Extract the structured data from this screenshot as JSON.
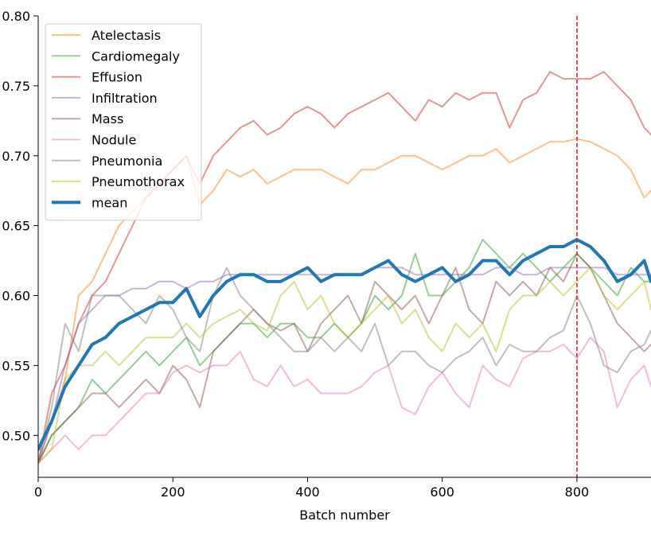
{
  "chart_data": {
    "type": "line",
    "title": "",
    "xlabel": "Batch number",
    "ylabel": "",
    "xlim": [
      0,
      910
    ],
    "ylim": [
      0.47,
      0.8
    ],
    "x_ticks": [
      0,
      200,
      400,
      600,
      800
    ],
    "x_tick_labels": [
      "0",
      "200",
      "400",
      "600",
      "800"
    ],
    "y_ticks": [
      0.5,
      0.55,
      0.6,
      0.65,
      0.7,
      0.75,
      0.8
    ],
    "y_tick_labels": [
      "0.50",
      "0.55",
      "0.60",
      "0.65",
      "0.70",
      "0.75",
      "0.80"
    ],
    "grid": false,
    "legend_position": "upper-left",
    "annotations": [
      {
        "type": "vertical-line",
        "x": 800,
        "style": "dashed",
        "color": "#d62728"
      }
    ],
    "series": [
      {
        "name": "Atelectasis",
        "color": "#ff7f0e",
        "opacity": 0.5,
        "width": 2,
        "x": [
          0,
          20,
          40,
          60,
          80,
          100,
          120,
          140,
          160,
          180,
          200,
          220,
          240,
          260,
          280,
          300,
          320,
          340,
          360,
          380,
          400,
          420,
          440,
          460,
          480,
          500,
          520,
          540,
          560,
          580,
          600,
          620,
          640,
          660,
          680,
          700,
          720,
          740,
          760,
          780,
          800,
          820,
          840,
          860,
          880,
          900,
          910
        ],
        "y": [
          0.48,
          0.51,
          0.54,
          0.6,
          0.61,
          0.63,
          0.65,
          0.66,
          0.67,
          0.68,
          0.69,
          0.7,
          0.665,
          0.675,
          0.69,
          0.685,
          0.69,
          0.68,
          0.685,
          0.69,
          0.69,
          0.69,
          0.685,
          0.68,
          0.69,
          0.69,
          0.695,
          0.7,
          0.7,
          0.695,
          0.69,
          0.695,
          0.7,
          0.7,
          0.705,
          0.695,
          0.7,
          0.705,
          0.71,
          0.71,
          0.712,
          0.71,
          0.705,
          0.7,
          0.69,
          0.67,
          0.675
        ]
      },
      {
        "name": "Cardiomegaly",
        "color": "#2ca02c",
        "opacity": 0.5,
        "width": 2,
        "x": [
          0,
          20,
          40,
          60,
          80,
          100,
          120,
          140,
          160,
          180,
          200,
          220,
          240,
          260,
          280,
          300,
          320,
          340,
          360,
          380,
          400,
          420,
          440,
          460,
          480,
          500,
          520,
          540,
          560,
          580,
          600,
          620,
          640,
          660,
          680,
          700,
          720,
          740,
          760,
          780,
          800,
          820,
          840,
          860,
          880,
          900,
          910
        ],
        "y": [
          0.48,
          0.5,
          0.51,
          0.52,
          0.54,
          0.53,
          0.54,
          0.55,
          0.56,
          0.55,
          0.56,
          0.57,
          0.55,
          0.56,
          0.57,
          0.58,
          0.58,
          0.57,
          0.58,
          0.58,
          0.57,
          0.57,
          0.58,
          0.57,
          0.58,
          0.6,
          0.59,
          0.6,
          0.63,
          0.6,
          0.6,
          0.61,
          0.62,
          0.64,
          0.63,
          0.62,
          0.63,
          0.62,
          0.61,
          0.62,
          0.63,
          0.62,
          0.61,
          0.6,
          0.62,
          0.61,
          0.61
        ]
      },
      {
        "name": "Effusion",
        "color": "#d62728",
        "opacity": 0.5,
        "width": 2,
        "x": [
          0,
          20,
          40,
          60,
          80,
          100,
          120,
          140,
          160,
          180,
          200,
          220,
          240,
          260,
          280,
          300,
          320,
          340,
          360,
          380,
          400,
          420,
          440,
          460,
          480,
          500,
          520,
          540,
          560,
          580,
          600,
          620,
          640,
          660,
          680,
          700,
          720,
          740,
          760,
          780,
          800,
          820,
          840,
          860,
          880,
          900,
          910
        ],
        "y": [
          0.48,
          0.53,
          0.55,
          0.58,
          0.6,
          0.61,
          0.63,
          0.65,
          0.67,
          0.68,
          0.69,
          0.7,
          0.68,
          0.7,
          0.71,
          0.72,
          0.725,
          0.715,
          0.72,
          0.73,
          0.735,
          0.73,
          0.72,
          0.73,
          0.735,
          0.74,
          0.745,
          0.735,
          0.725,
          0.74,
          0.735,
          0.745,
          0.74,
          0.745,
          0.745,
          0.72,
          0.74,
          0.745,
          0.76,
          0.755,
          0.755,
          0.755,
          0.76,
          0.75,
          0.74,
          0.72,
          0.715
        ]
      },
      {
        "name": "Infiltration",
        "color": "#9467bd",
        "opacity": 0.5,
        "width": 2,
        "x": [
          0,
          20,
          40,
          60,
          80,
          100,
          120,
          140,
          160,
          180,
          200,
          220,
          240,
          260,
          280,
          300,
          320,
          340,
          360,
          380,
          400,
          420,
          440,
          460,
          480,
          500,
          520,
          540,
          560,
          580,
          600,
          620,
          640,
          660,
          680,
          700,
          720,
          740,
          760,
          780,
          800,
          820,
          840,
          860,
          880,
          900,
          910
        ],
        "y": [
          0.48,
          0.51,
          0.55,
          0.58,
          0.59,
          0.6,
          0.6,
          0.605,
          0.605,
          0.61,
          0.61,
          0.605,
          0.61,
          0.61,
          0.615,
          0.615,
          0.615,
          0.615,
          0.615,
          0.615,
          0.615,
          0.615,
          0.615,
          0.615,
          0.615,
          0.62,
          0.62,
          0.62,
          0.615,
          0.615,
          0.615,
          0.615,
          0.615,
          0.615,
          0.62,
          0.62,
          0.615,
          0.615,
          0.62,
          0.62,
          0.62,
          0.62,
          0.62,
          0.615,
          0.615,
          0.615,
          0.615
        ]
      },
      {
        "name": "Mass",
        "color": "#8c564b",
        "opacity": 0.5,
        "width": 2,
        "x": [
          0,
          20,
          40,
          60,
          80,
          100,
          120,
          140,
          160,
          180,
          200,
          220,
          240,
          260,
          280,
          300,
          320,
          340,
          360,
          380,
          400,
          420,
          440,
          460,
          480,
          500,
          520,
          540,
          560,
          580,
          600,
          620,
          640,
          660,
          680,
          700,
          720,
          740,
          760,
          780,
          800,
          820,
          840,
          860,
          880,
          900,
          910
        ],
        "y": [
          0.48,
          0.5,
          0.51,
          0.52,
          0.53,
          0.53,
          0.52,
          0.53,
          0.54,
          0.53,
          0.55,
          0.54,
          0.52,
          0.56,
          0.57,
          0.58,
          0.59,
          0.58,
          0.575,
          0.58,
          0.56,
          0.58,
          0.59,
          0.6,
          0.58,
          0.61,
          0.6,
          0.59,
          0.6,
          0.58,
          0.6,
          0.62,
          0.59,
          0.58,
          0.61,
          0.6,
          0.61,
          0.6,
          0.62,
          0.61,
          0.63,
          0.62,
          0.6,
          0.58,
          0.57,
          0.56,
          0.565
        ]
      },
      {
        "name": "Nodule",
        "color": "#e377c2",
        "opacity": 0.5,
        "width": 2,
        "x": [
          0,
          20,
          40,
          60,
          80,
          100,
          120,
          140,
          160,
          180,
          200,
          220,
          240,
          260,
          280,
          300,
          320,
          340,
          360,
          380,
          400,
          420,
          440,
          460,
          480,
          500,
          520,
          540,
          560,
          580,
          600,
          620,
          640,
          660,
          680,
          700,
          720,
          740,
          760,
          780,
          800,
          820,
          840,
          860,
          880,
          900,
          910
        ],
        "y": [
          0.48,
          0.49,
          0.5,
          0.49,
          0.5,
          0.5,
          0.51,
          0.52,
          0.53,
          0.53,
          0.545,
          0.55,
          0.545,
          0.55,
          0.55,
          0.56,
          0.54,
          0.535,
          0.55,
          0.535,
          0.54,
          0.53,
          0.53,
          0.53,
          0.535,
          0.545,
          0.55,
          0.52,
          0.515,
          0.535,
          0.545,
          0.53,
          0.52,
          0.55,
          0.54,
          0.535,
          0.555,
          0.56,
          0.56,
          0.565,
          0.555,
          0.57,
          0.56,
          0.52,
          0.54,
          0.55,
          0.535
        ]
      },
      {
        "name": "Pneumonia",
        "color": "#7f7f7f",
        "opacity": 0.5,
        "width": 2,
        "x": [
          0,
          20,
          40,
          60,
          80,
          100,
          120,
          140,
          160,
          180,
          200,
          220,
          240,
          260,
          280,
          300,
          320,
          340,
          360,
          380,
          400,
          420,
          440,
          460,
          480,
          500,
          520,
          540,
          560,
          580,
          600,
          620,
          640,
          660,
          680,
          700,
          720,
          740,
          760,
          780,
          800,
          820,
          840,
          860,
          880,
          900,
          910
        ],
        "y": [
          0.48,
          0.52,
          0.58,
          0.56,
          0.6,
          0.6,
          0.6,
          0.59,
          0.58,
          0.6,
          0.59,
          0.57,
          0.56,
          0.6,
          0.62,
          0.6,
          0.59,
          0.58,
          0.57,
          0.56,
          0.56,
          0.57,
          0.56,
          0.57,
          0.56,
          0.58,
          0.55,
          0.56,
          0.56,
          0.55,
          0.545,
          0.555,
          0.56,
          0.57,
          0.55,
          0.565,
          0.56,
          0.56,
          0.57,
          0.575,
          0.6,
          0.58,
          0.55,
          0.545,
          0.56,
          0.565,
          0.575
        ]
      },
      {
        "name": "Pneumothorax",
        "color": "#bcbd22",
        "opacity": 0.5,
        "width": 2,
        "x": [
          0,
          20,
          40,
          60,
          80,
          100,
          120,
          140,
          160,
          180,
          200,
          220,
          240,
          260,
          280,
          300,
          320,
          340,
          360,
          380,
          400,
          420,
          440,
          460,
          480,
          500,
          520,
          540,
          560,
          580,
          600,
          620,
          640,
          660,
          680,
          700,
          720,
          740,
          760,
          780,
          800,
          820,
          840,
          860,
          880,
          900,
          910
        ],
        "y": [
          0.48,
          0.49,
          0.54,
          0.55,
          0.55,
          0.56,
          0.55,
          0.56,
          0.57,
          0.57,
          0.57,
          0.58,
          0.57,
          0.58,
          0.585,
          0.59,
          0.58,
          0.575,
          0.6,
          0.61,
          0.59,
          0.6,
          0.58,
          0.57,
          0.58,
          0.59,
          0.6,
          0.58,
          0.59,
          0.57,
          0.56,
          0.58,
          0.57,
          0.58,
          0.56,
          0.59,
          0.6,
          0.6,
          0.61,
          0.6,
          0.61,
          0.62,
          0.6,
          0.59,
          0.6,
          0.61,
          0.59
        ]
      },
      {
        "name": "mean",
        "color": "#1f77b4",
        "opacity": 1.0,
        "width": 4,
        "x": [
          0,
          20,
          40,
          60,
          80,
          100,
          120,
          140,
          160,
          180,
          200,
          220,
          240,
          260,
          280,
          300,
          320,
          340,
          360,
          380,
          400,
          420,
          440,
          460,
          480,
          500,
          520,
          540,
          560,
          580,
          600,
          620,
          640,
          660,
          680,
          700,
          720,
          740,
          760,
          780,
          800,
          820,
          840,
          860,
          880,
          900,
          910
        ],
        "y": [
          0.49,
          0.51,
          0.535,
          0.55,
          0.565,
          0.57,
          0.58,
          0.585,
          0.59,
          0.595,
          0.595,
          0.605,
          0.585,
          0.6,
          0.61,
          0.615,
          0.615,
          0.61,
          0.61,
          0.615,
          0.62,
          0.61,
          0.615,
          0.615,
          0.615,
          0.62,
          0.625,
          0.615,
          0.61,
          0.615,
          0.62,
          0.61,
          0.615,
          0.625,
          0.625,
          0.615,
          0.625,
          0.63,
          0.635,
          0.635,
          0.64,
          0.635,
          0.625,
          0.61,
          0.615,
          0.625,
          0.61
        ]
      }
    ]
  }
}
